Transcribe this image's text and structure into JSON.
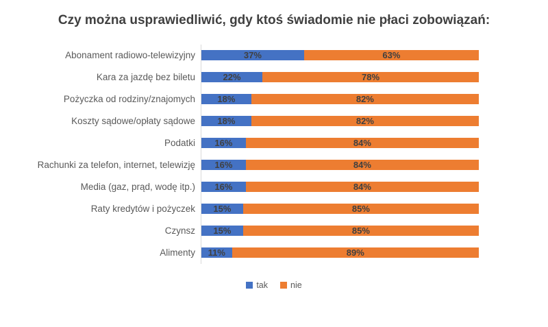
{
  "chart_data": {
    "type": "bar",
    "orientation": "horizontal-stacked",
    "title": "Czy można usprawiedliwić, gdy ktoś świadomie nie płaci zobowiązań:",
    "categories": [
      "Abonament radiowo-telewizyjny",
      "Kara za jazdę bez biletu",
      "Pożyczka od rodziny/znajomych",
      "Koszty sądowe/opłaty sądowe",
      "Podatki",
      "Rachunki za telefon, internet, telewizję",
      "Media (gaz, prąd, wodę itp.)",
      "Raty kredytów i pożyczek",
      "Czynsz",
      "Alimenty"
    ],
    "series": [
      {
        "name": "tak",
        "color": "#4472C4",
        "values": [
          37,
          22,
          18,
          18,
          16,
          16,
          16,
          15,
          15,
          11
        ]
      },
      {
        "name": "nie",
        "color": "#ED7D31",
        "values": [
          63,
          78,
          82,
          82,
          84,
          84,
          84,
          85,
          85,
          89
        ]
      }
    ],
    "xlim": [
      0,
      100
    ],
    "data_label_format": "percent",
    "legend_position": "bottom",
    "grid": false,
    "axis_line_color": "#d9d9d9",
    "label_color": "#595959",
    "data_label_color": "#404040",
    "title_color": "#404040",
    "background_color": "#ffffff"
  }
}
